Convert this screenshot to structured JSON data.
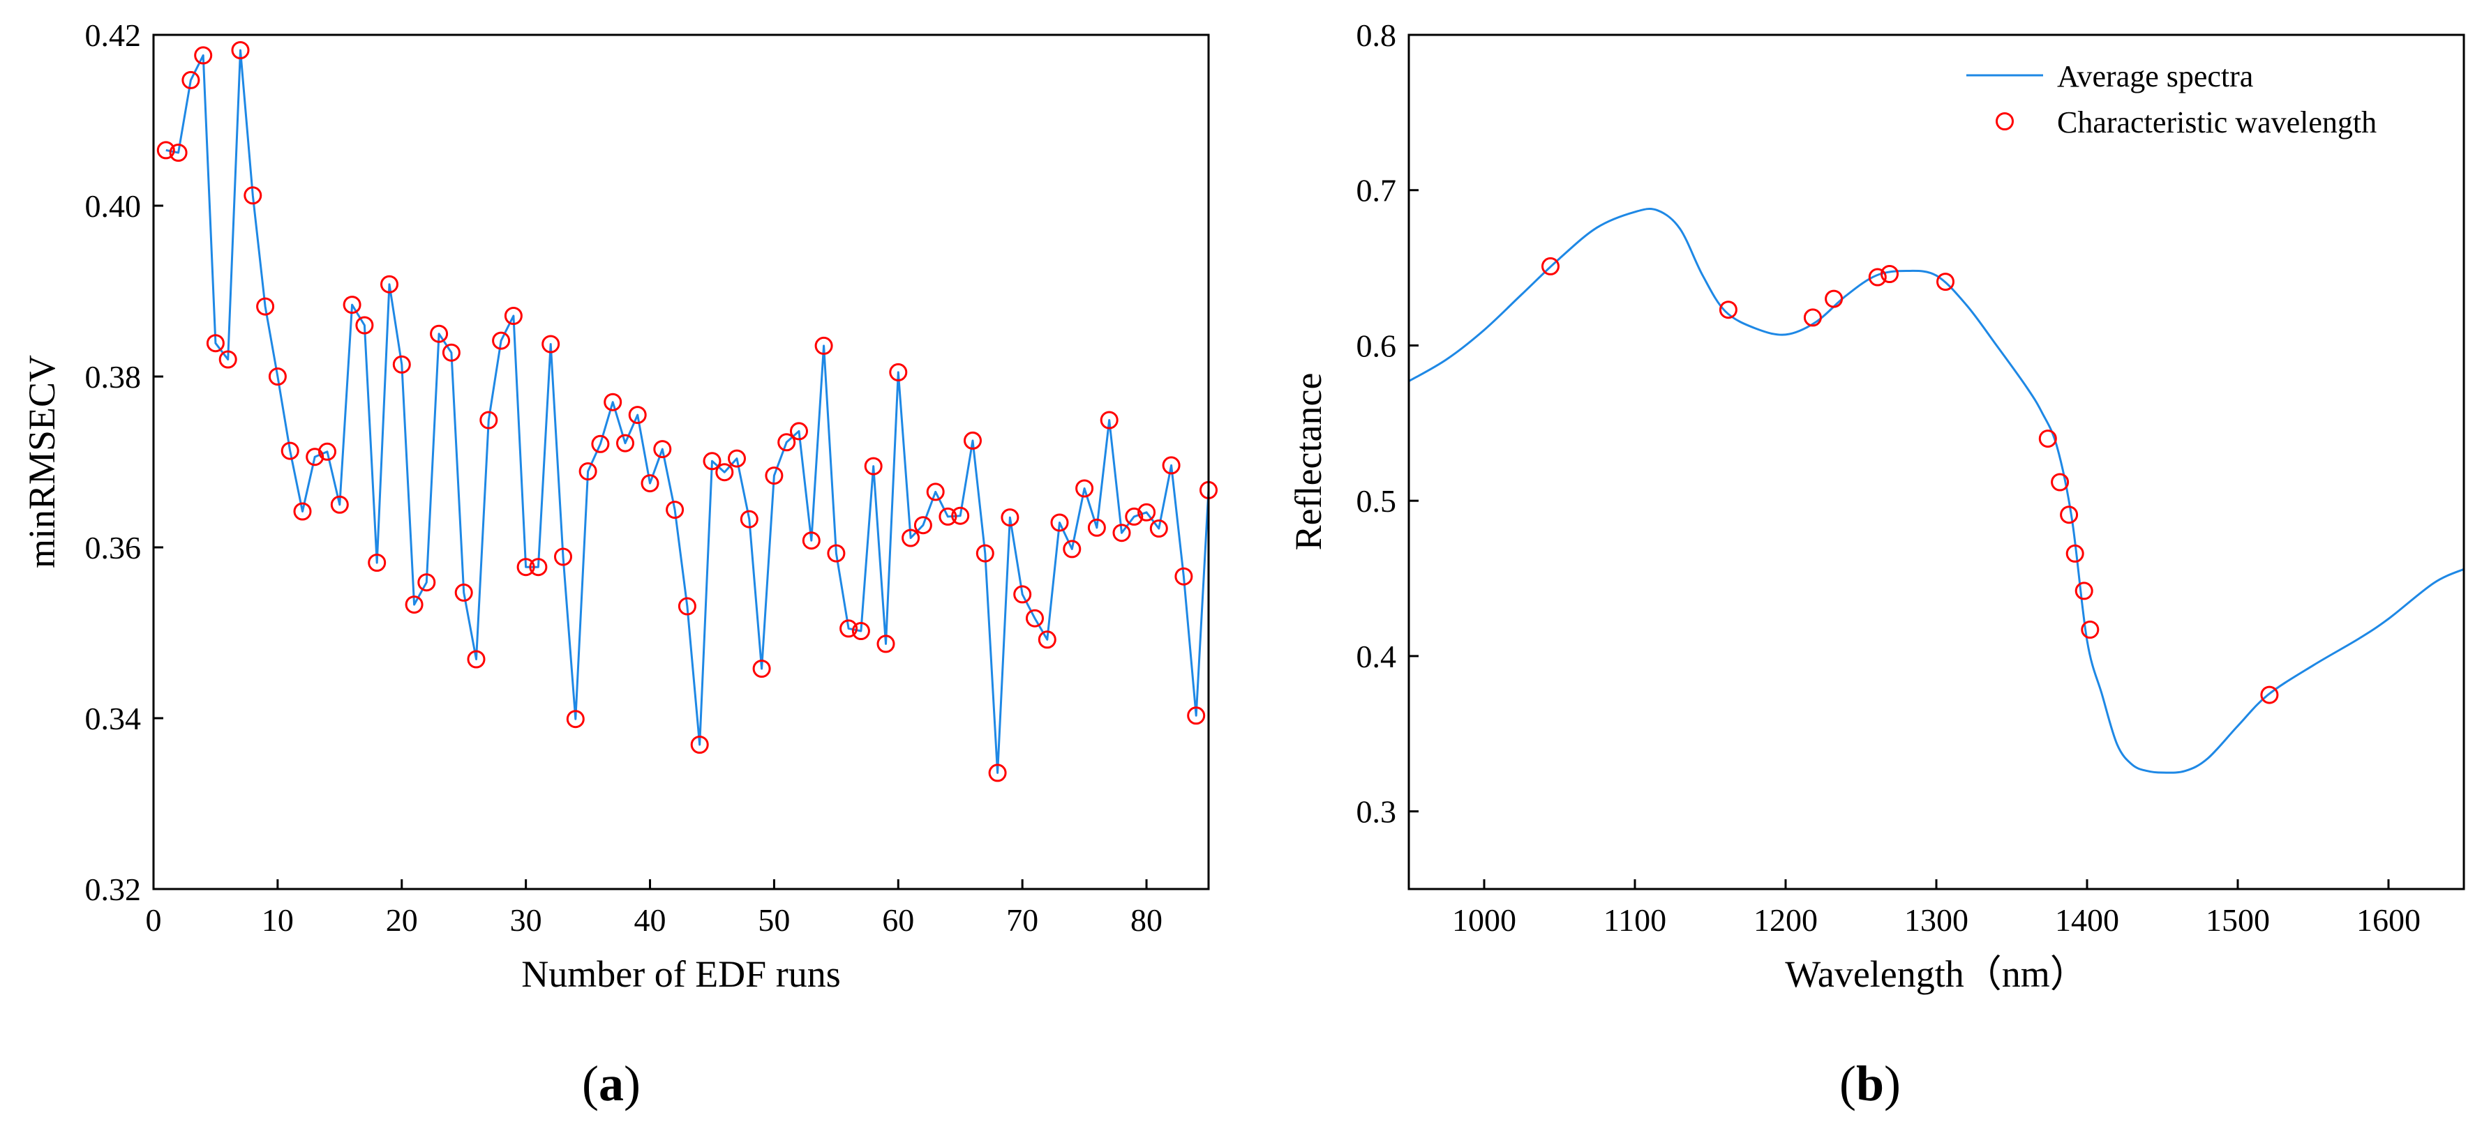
{
  "chart_data": [
    {
      "id": "a",
      "type": "line",
      "panel_label": "(a)",
      "panel_letter": "a",
      "title": "",
      "xlabel": "Number of EDF runs",
      "ylabel": "minRMSECV",
      "xlim": [
        0,
        85
      ],
      "ylim": [
        0.32,
        0.42
      ],
      "grid": false,
      "xticks": [
        0,
        10,
        20,
        30,
        40,
        50,
        60,
        70,
        80
      ],
      "xtick_labels": [
        "0",
        "10",
        "20",
        "30",
        "40",
        "50",
        "60",
        "70",
        "80"
      ],
      "yticks": [
        0.32,
        0.34,
        0.36,
        0.38,
        0.4,
        0.42
      ],
      "ytick_labels": [
        "0.32",
        "0.34",
        "0.36",
        "0.38",
        "0.40",
        "0.42"
      ],
      "line_color": "#1e88e5",
      "marker_color": "#ff0000",
      "x": [
        1,
        2,
        3,
        4,
        5,
        6,
        7,
        8,
        9,
        10,
        11,
        12,
        13,
        14,
        15,
        16,
        17,
        18,
        19,
        20,
        21,
        22,
        23,
        24,
        25,
        26,
        27,
        28,
        29,
        30,
        31,
        32,
        33,
        34,
        35,
        36,
        37,
        38,
        39,
        40,
        41,
        42,
        43,
        44,
        45,
        46,
        47,
        48,
        49,
        50,
        51,
        52,
        53,
        54,
        55,
        56,
        57,
        58,
        59,
        60,
        61,
        62,
        63,
        64,
        65,
        66,
        67,
        68,
        69,
        70,
        71,
        72,
        73,
        74,
        75,
        76,
        77,
        78,
        79,
        80,
        81,
        82,
        83,
        84,
        85
      ],
      "y": [
        0.4065,
        0.4062,
        0.4147,
        0.4176,
        0.3839,
        0.382,
        0.4182,
        0.4012,
        0.3882,
        0.38,
        0.3713,
        0.3642,
        0.3706,
        0.3712,
        0.365,
        0.3884,
        0.386,
        0.3582,
        0.3908,
        0.3814,
        0.3533,
        0.3559,
        0.385,
        0.3828,
        0.3547,
        0.3469,
        0.3749,
        0.3842,
        0.3871,
        0.3577,
        0.3577,
        0.3838,
        0.3589,
        0.3399,
        0.3689,
        0.3721,
        0.377,
        0.3722,
        0.3755,
        0.3675,
        0.3715,
        0.3644,
        0.3531,
        0.3369,
        0.3701,
        0.3688,
        0.3704,
        0.3633,
        0.3458,
        0.3684,
        0.3723,
        0.3736,
        0.3608,
        0.3836,
        0.3593,
        0.3505,
        0.3502,
        0.3695,
        0.3487,
        0.3805,
        0.3611,
        0.3626,
        0.3665,
        0.3636,
        0.3637,
        0.3725,
        0.3593,
        0.3336,
        0.3635,
        0.3545,
        0.3517,
        0.3492,
        0.3629,
        0.3598,
        0.3669,
        0.3623,
        0.3749,
        0.3617,
        0.3636,
        0.3641,
        0.3622,
        0.3696,
        0.3566,
        0.3403,
        0.3667
      ]
    },
    {
      "id": "b",
      "type": "line",
      "panel_label": "(b)",
      "panel_letter": "b",
      "title": "",
      "xlabel": "Wavelength（nm）",
      "ylabel": "Reflectance",
      "xlim": [
        950,
        1650
      ],
      "ylim": [
        0.25,
        0.8
      ],
      "grid": false,
      "xticks": [
        1000,
        1100,
        1200,
        1300,
        1400,
        1500,
        1600
      ],
      "xtick_labels": [
        "1000",
        "1100",
        "1200",
        "1300",
        "1400",
        "1500",
        "1600"
      ],
      "yticks": [
        0.3,
        0.4,
        0.5,
        0.6,
        0.7,
        0.8
      ],
      "ytick_labels": [
        "0.3",
        "0.4",
        "0.5",
        "0.6",
        "0.7",
        "0.8"
      ],
      "legend_position": "top-right",
      "series": [
        {
          "name": "Average spectra",
          "kind": "line",
          "color": "#1e88e5",
          "x": [
            950,
            975,
            1000,
            1025,
            1050,
            1075,
            1100,
            1115,
            1130,
            1145,
            1160,
            1180,
            1200,
            1220,
            1240,
            1260,
            1280,
            1300,
            1320,
            1340,
            1360,
            1370,
            1380,
            1390,
            1400,
            1410,
            1420,
            1430,
            1440,
            1450,
            1465,
            1480,
            1500,
            1520,
            1550,
            1580,
            1600,
            1630,
            1650
          ],
          "y": [
            0.577,
            0.591,
            0.61,
            0.633,
            0.656,
            0.676,
            0.686,
            0.687,
            0.675,
            0.645,
            0.622,
            0.611,
            0.607,
            0.615,
            0.632,
            0.645,
            0.648,
            0.645,
            0.626,
            0.6,
            0.573,
            0.557,
            0.535,
            0.488,
            0.41,
            0.375,
            0.343,
            0.33,
            0.326,
            0.325,
            0.326,
            0.334,
            0.355,
            0.375,
            0.394,
            0.411,
            0.424,
            0.447,
            0.456
          ]
        },
        {
          "name": "Characteristic wavelength",
          "kind": "markers",
          "color": "#ff0000",
          "x": [
            1044,
            1162,
            1218,
            1232,
            1261,
            1269,
            1306,
            1374,
            1382,
            1388,
            1392,
            1398,
            1402,
            1521
          ],
          "y": [
            0.651,
            0.623,
            0.618,
            0.63,
            0.644,
            0.646,
            0.641,
            0.54,
            0.512,
            0.491,
            0.466,
            0.442,
            0.417,
            0.375
          ]
        }
      ]
    }
  ]
}
